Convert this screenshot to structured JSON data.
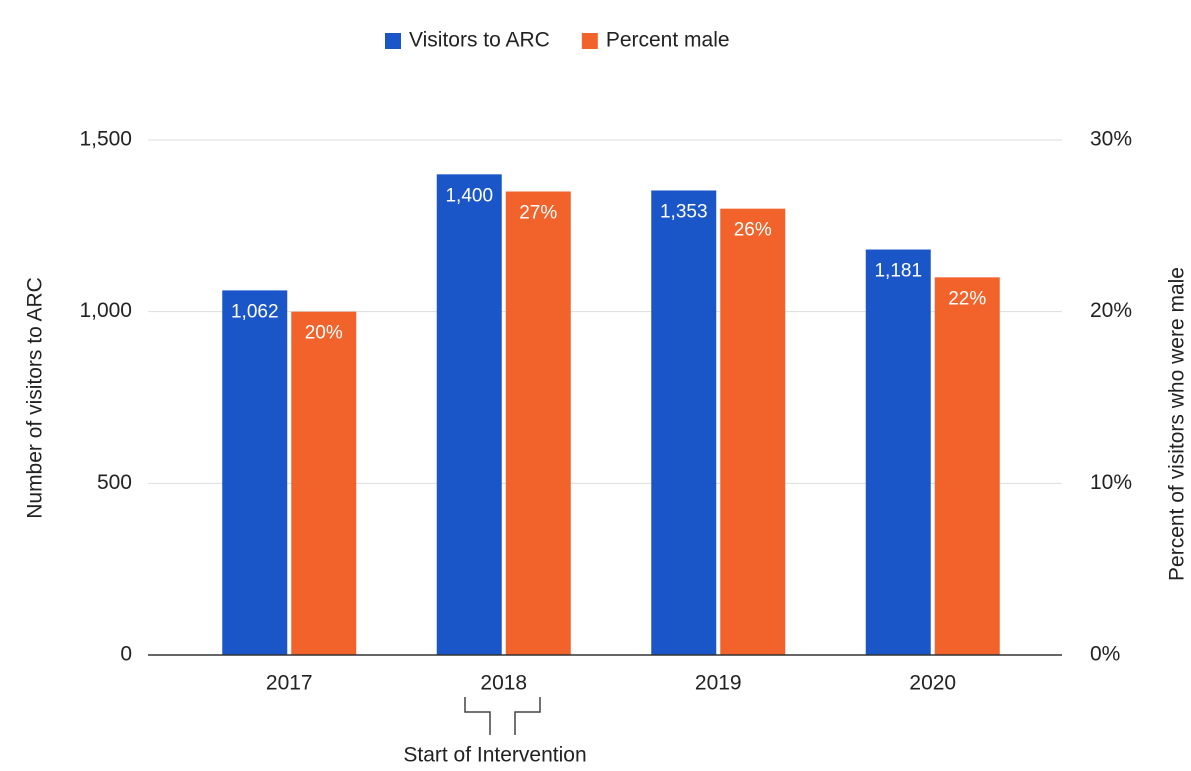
{
  "chart_data": {
    "type": "bar",
    "categories": [
      "2017",
      "2018",
      "2019",
      "2020"
    ],
    "series": [
      {
        "name": "Visitors to ARC",
        "color": "#1b56c8",
        "values": [
          1062,
          1400,
          1353,
          1181
        ],
        "value_labels": [
          "1,062",
          "1,400",
          "1,353",
          "1,181"
        ]
      },
      {
        "name": "Percent male",
        "color": "#f1632a",
        "axis": "y2",
        "values": [
          20,
          27,
          26,
          22
        ],
        "value_labels": [
          "20%",
          "27%",
          "26%",
          "22%"
        ]
      }
    ],
    "ylabel": "Number of visitors to ARC",
    "y2label": "Percent of visitors who were male",
    "ylim": [
      0,
      1500
    ],
    "yticks": [
      0,
      500,
      {
        "value": 1000,
        "label": "1,000"
      },
      {
        "value": 1500,
        "label": "1,500"
      }
    ],
    "y2lim": [
      0,
      30
    ],
    "y2ticks": [
      {
        "value": 0,
        "label": "0%"
      },
      {
        "value": 10,
        "label": "10%"
      },
      {
        "value": 20,
        "label": "20%"
      },
      {
        "value": 30,
        "label": "30%"
      }
    ],
    "grid": true,
    "legend": "top",
    "annotation": "Start of Intervention"
  }
}
